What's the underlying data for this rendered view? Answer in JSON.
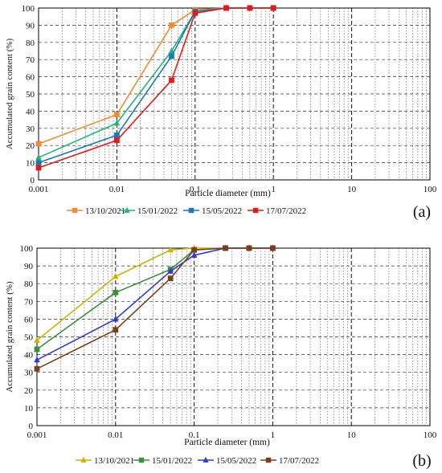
{
  "panels": [
    {
      "panel_label": "(a)",
      "legend": [
        {
          "name": "13/10/2021",
          "color": "#f28a30",
          "marker": "square"
        },
        {
          "name": "15/01/2022",
          "color": "#22b573",
          "marker": "triangle"
        },
        {
          "name": "15/05/2022",
          "color": "#1f77b4",
          "marker": "square"
        },
        {
          "name": "17/07/2022",
          "color": "#e31a1c",
          "marker": "square"
        }
      ]
    },
    {
      "panel_label": "(b)",
      "legend": [
        {
          "name": "13/10/2021",
          "color": "#c8b400",
          "marker": "triangle"
        },
        {
          "name": "15/01/2022",
          "color": "#3a8f3a",
          "marker": "square"
        },
        {
          "name": "15/05/2022",
          "color": "#2f3bd6",
          "marker": "triangle"
        },
        {
          "name": "17/07/2022",
          "color": "#7b3f1e",
          "marker": "square"
        }
      ]
    }
  ],
  "chart_data": [
    {
      "type": "line",
      "xscale": "log",
      "xlabel": "Particle diameter (mm)",
      "ylabel": "Accumulated grain content (%)",
      "xlim": [
        0.001,
        100
      ],
      "ylim": [
        0,
        100
      ],
      "x_ticks": [
        "0.001",
        "0.01",
        "0.1",
        "1",
        "10",
        "100"
      ],
      "y_ticks": [
        "0",
        "10",
        "20",
        "30",
        "40",
        "50",
        "60",
        "70",
        "80",
        "90",
        "100"
      ],
      "grid": true,
      "legend_position": "bottom",
      "series": [
        {
          "name": "13/10/2021",
          "x": [
            0.001,
            0.01,
            0.05,
            0.1,
            0.25,
            0.5,
            1
          ],
          "y": [
            21,
            38,
            90,
            99,
            100,
            100,
            100
          ]
        },
        {
          "name": "15/01/2022",
          "x": [
            0.001,
            0.01,
            0.05,
            0.1,
            0.25,
            0.5,
            1
          ],
          "y": [
            13,
            33,
            75,
            98,
            100,
            100,
            100
          ]
        },
        {
          "name": "15/05/2022",
          "x": [
            0.001,
            0.01,
            0.05,
            0.1,
            0.25,
            0.5,
            1
          ],
          "y": [
            10,
            26,
            72,
            98,
            100,
            100,
            100
          ]
        },
        {
          "name": "17/07/2022",
          "x": [
            0.001,
            0.01,
            0.05,
            0.1,
            0.25,
            0.5,
            1
          ],
          "y": [
            7,
            23,
            58,
            97,
            100,
            100,
            100
          ]
        }
      ]
    },
    {
      "type": "line",
      "xscale": "log",
      "xlabel": "Particle diameter (mm)",
      "ylabel": "Accumulated grain content (%)",
      "xlim": [
        0.001,
        100
      ],
      "ylim": [
        0,
        100
      ],
      "x_ticks": [
        "0.001",
        "0.01",
        "0.1",
        "1",
        "10",
        "100"
      ],
      "y_ticks": [
        "0",
        "10",
        "20",
        "30",
        "40",
        "50",
        "60",
        "70",
        "80",
        "90",
        "100"
      ],
      "grid": true,
      "legend_position": "bottom",
      "series": [
        {
          "name": "13/10/2021",
          "x": [
            0.001,
            0.01,
            0.05,
            0.1,
            0.25,
            0.5,
            1
          ],
          "y": [
            48,
            84,
            99,
            100,
            100,
            100,
            100
          ]
        },
        {
          "name": "15/01/2022",
          "x": [
            0.001,
            0.01,
            0.05,
            0.1,
            0.25,
            0.5,
            1
          ],
          "y": [
            43,
            75,
            88,
            99,
            100,
            100,
            100
          ]
        },
        {
          "name": "15/05/2022",
          "x": [
            0.001,
            0.01,
            0.05,
            0.1,
            0.25,
            0.5,
            1
          ],
          "y": [
            37,
            60,
            87,
            96,
            100,
            100,
            100
          ]
        },
        {
          "name": "17/07/2022",
          "x": [
            0.001,
            0.01,
            0.05,
            0.1,
            0.25,
            0.5,
            1
          ],
          "y": [
            32,
            54,
            83,
            99,
            100,
            100,
            100
          ]
        }
      ]
    }
  ]
}
